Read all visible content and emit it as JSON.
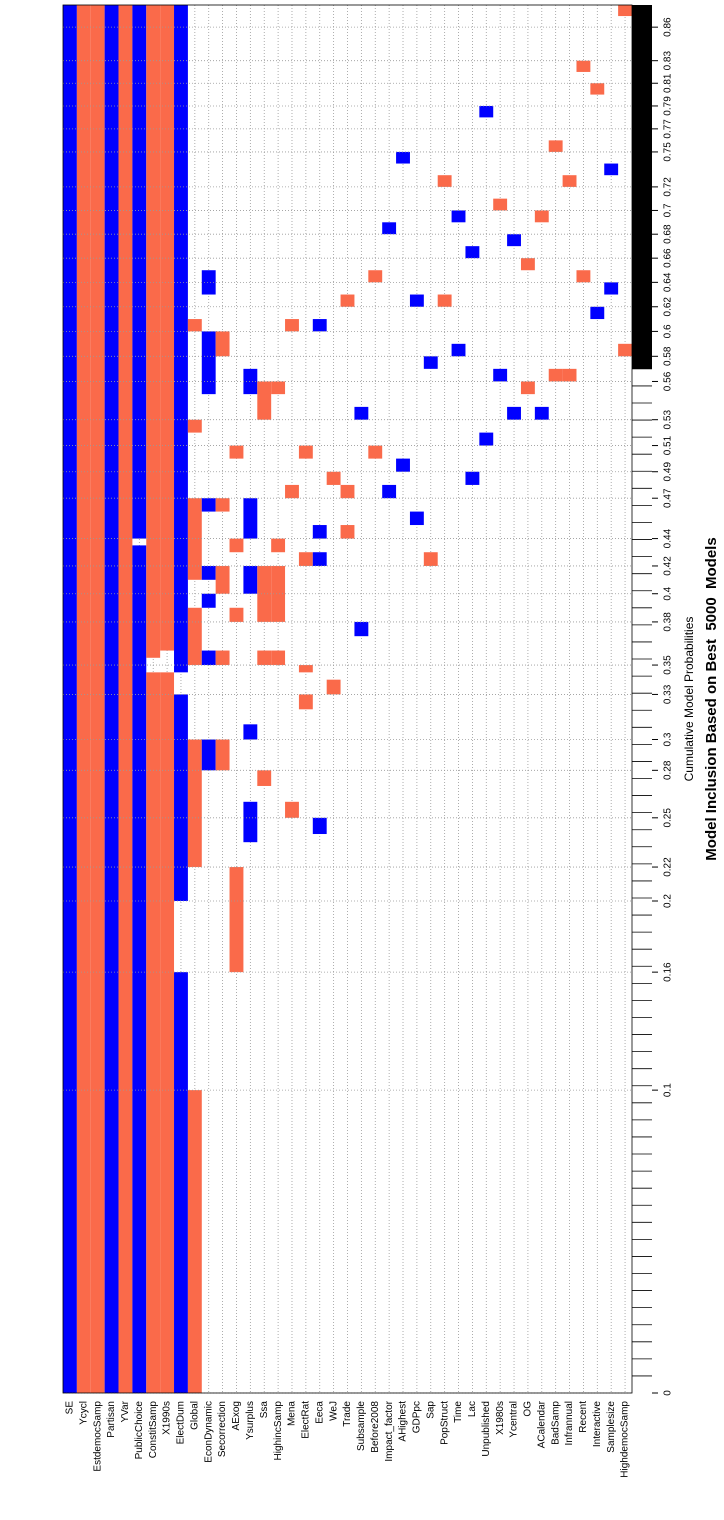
{
  "chart_data": {
    "type": "inclusion",
    "title": "Model Inclusion Based on Best  5000  Models",
    "xlabel": "Cumulative Model Probabilities",
    "xlim": [
      0,
      0.88
    ],
    "xticks": [
      0,
      0.1,
      0.16,
      0.2,
      0.22,
      0.25,
      0.28,
      0.3,
      0.33,
      0.35,
      0.38,
      0.4,
      0.42,
      0.44,
      0.47,
      0.49,
      0.51,
      0.53,
      0.56,
      0.58,
      0.6,
      0.62,
      0.64,
      0.66,
      0.68,
      0.7,
      0.72,
      0.75,
      0.77,
      0.79,
      0.81,
      0.83,
      0.86
    ],
    "grid": true,
    "colors": {
      "positive": "#0000ff",
      "negative": "#fa6a4a"
    },
    "series": [
      {
        "name": "SE",
        "segments": [
          [
            0,
            0.88,
            1
          ]
        ]
      },
      {
        "name": "Ycycl",
        "segments": [
          [
            0,
            0.88,
            -1
          ]
        ]
      },
      {
        "name": "EstdemocSamp",
        "segments": [
          [
            0,
            0.88,
            -1
          ]
        ]
      },
      {
        "name": "Partisan",
        "segments": [
          [
            0,
            0.88,
            1
          ]
        ]
      },
      {
        "name": "YVar",
        "segments": [
          [
            0,
            0.88,
            -1
          ]
        ]
      },
      {
        "name": "PublicChoice",
        "segments": [
          [
            0,
            0.435,
            1
          ],
          [
            0.44,
            0.88,
            1
          ]
        ]
      },
      {
        "name": "ConstitSamp",
        "segments": [
          [
            0,
            0.345,
            -1
          ],
          [
            0.355,
            0.88,
            -1
          ]
        ]
      },
      {
        "name": "X1990s",
        "segments": [
          [
            0,
            0.345,
            -1
          ],
          [
            0.36,
            0.88,
            -1
          ]
        ]
      },
      {
        "name": "ElectDum",
        "segments": [
          [
            0,
            0.16,
            1
          ],
          [
            0.2,
            0.33,
            1
          ],
          [
            0.345,
            0.88,
            1
          ]
        ]
      },
      {
        "name": "Global",
        "segments": [
          [
            0,
            0.1,
            -1
          ],
          [
            0.22,
            0.3,
            -1
          ],
          [
            0.35,
            0.39,
            -1
          ],
          [
            0.41,
            0.47,
            -1
          ],
          [
            0.52,
            0.53,
            -1
          ],
          [
            0.6,
            0.61,
            -1
          ]
        ]
      },
      {
        "name": "EconDynamic",
        "segments": [
          [
            0.28,
            0.3,
            1
          ],
          [
            0.35,
            0.36,
            1
          ],
          [
            0.39,
            0.4,
            1
          ],
          [
            0.41,
            0.42,
            1
          ],
          [
            0.46,
            0.47,
            1
          ],
          [
            0.55,
            0.6,
            1
          ],
          [
            0.63,
            0.65,
            1
          ]
        ]
      },
      {
        "name": "Secorrection",
        "segments": [
          [
            0.28,
            0.3,
            -1
          ],
          [
            0.35,
            0.36,
            -1
          ],
          [
            0.4,
            0.42,
            -1
          ],
          [
            0.46,
            0.47,
            -1
          ],
          [
            0.58,
            0.6,
            -1
          ]
        ]
      },
      {
        "name": "AExog",
        "segments": [
          [
            0.16,
            0.22,
            -1
          ],
          [
            0.38,
            0.39,
            -1
          ],
          [
            0.43,
            0.44,
            -1
          ],
          [
            0.5,
            0.51,
            -1
          ]
        ]
      },
      {
        "name": "Ysurplus",
        "segments": [
          [
            0.235,
            0.26,
            1
          ],
          [
            0.3,
            0.31,
            1
          ],
          [
            0.4,
            0.42,
            1
          ],
          [
            0.44,
            0.47,
            1
          ],
          [
            0.55,
            0.57,
            1
          ]
        ]
      },
      {
        "name": "Ssa",
        "segments": [
          [
            0.27,
            0.28,
            -1
          ],
          [
            0.35,
            0.36,
            -1
          ],
          [
            0.38,
            0.42,
            -1
          ],
          [
            0.53,
            0.56,
            -1
          ]
        ]
      },
      {
        "name": "HighincSamp",
        "segments": [
          [
            0.35,
            0.36,
            -1
          ],
          [
            0.38,
            0.42,
            -1
          ],
          [
            0.43,
            0.44,
            -1
          ],
          [
            0.55,
            0.56,
            -1
          ]
        ]
      },
      {
        "name": "Mena",
        "segments": [
          [
            0.25,
            0.26,
            -1
          ],
          [
            0.47,
            0.48,
            -1
          ],
          [
            0.6,
            0.61,
            -1
          ]
        ]
      },
      {
        "name": "ElectRat",
        "segments": [
          [
            0.32,
            0.33,
            -1
          ],
          [
            0.345,
            0.35,
            -1
          ],
          [
            0.42,
            0.43,
            -1
          ],
          [
            0.5,
            0.51,
            -1
          ]
        ]
      },
      {
        "name": "Eeca",
        "segments": [
          [
            0.24,
            0.25,
            1
          ],
          [
            0.42,
            0.43,
            1
          ],
          [
            0.44,
            0.45,
            1
          ],
          [
            0.6,
            0.61,
            1
          ]
        ]
      },
      {
        "name": "WeJ",
        "segments": [
          [
            0.33,
            0.34,
            -1
          ],
          [
            0.48,
            0.49,
            -1
          ]
        ]
      },
      {
        "name": "Trade",
        "segments": [
          [
            0.44,
            0.45,
            -1
          ],
          [
            0.47,
            0.48,
            -1
          ],
          [
            0.62,
            0.63,
            -1
          ]
        ]
      },
      {
        "name": "Subsample",
        "segments": [
          [
            0.37,
            0.38,
            1
          ],
          [
            0.53,
            0.54,
            1
          ]
        ]
      },
      {
        "name": "Before2008",
        "segments": [
          [
            0.5,
            0.51,
            -1
          ],
          [
            0.64,
            0.65,
            -1
          ]
        ]
      },
      {
        "name": "Impact_factor",
        "segments": [
          [
            0.47,
            0.48,
            1
          ],
          [
            0.68,
            0.69,
            1
          ]
        ]
      },
      {
        "name": "AHighest",
        "segments": [
          [
            0.49,
            0.5,
            1
          ],
          [
            0.74,
            0.75,
            1
          ]
        ]
      },
      {
        "name": "GDPpc",
        "segments": [
          [
            0.45,
            0.46,
            1
          ],
          [
            0.62,
            0.63,
            1
          ]
        ]
      },
      {
        "name": "Sap",
        "segments": [
          [
            0.42,
            0.43,
            -1
          ],
          [
            0.57,
            0.58,
            1
          ]
        ]
      },
      {
        "name": "PopStruct",
        "segments": [
          [
            0.62,
            0.63,
            -1
          ],
          [
            0.72,
            0.73,
            -1
          ]
        ]
      },
      {
        "name": "Time",
        "segments": [
          [
            0.58,
            0.59,
            1
          ],
          [
            0.69,
            0.7,
            1
          ]
        ]
      },
      {
        "name": "Lac",
        "segments": [
          [
            0.48,
            0.49,
            1
          ],
          [
            0.66,
            0.67,
            1
          ]
        ]
      },
      {
        "name": "Unpublished",
        "segments": [
          [
            0.51,
            0.52,
            1
          ],
          [
            0.78,
            0.79,
            1
          ]
        ]
      },
      {
        "name": "X1980s",
        "segments": [
          [
            0.56,
            0.57,
            1
          ],
          [
            0.7,
            0.71,
            -1
          ]
        ]
      },
      {
        "name": "Ycentral",
        "segments": [
          [
            0.53,
            0.54,
            1
          ],
          [
            0.67,
            0.68,
            1
          ]
        ]
      },
      {
        "name": "OG",
        "segments": [
          [
            0.55,
            0.56,
            -1
          ],
          [
            0.65,
            0.66,
            -1
          ]
        ]
      },
      {
        "name": "ACalendar",
        "segments": [
          [
            0.53,
            0.54,
            1
          ],
          [
            0.69,
            0.7,
            -1
          ]
        ]
      },
      {
        "name": "BadSamp",
        "segments": [
          [
            0.56,
            0.57,
            -1
          ],
          [
            0.75,
            0.76,
            -1
          ]
        ]
      },
      {
        "name": "Infrannual",
        "segments": [
          [
            0.56,
            0.57,
            -1
          ],
          [
            0.72,
            0.73,
            -1
          ]
        ]
      },
      {
        "name": "Recent",
        "segments": [
          [
            0.64,
            0.65,
            -1
          ],
          [
            0.82,
            0.83,
            -1
          ]
        ]
      },
      {
        "name": "Interactive",
        "segments": [
          [
            0.61,
            0.62,
            1
          ],
          [
            0.8,
            0.81,
            -1
          ]
        ]
      },
      {
        "name": "Samplesize",
        "segments": [
          [
            0.63,
            0.64,
            1
          ],
          [
            0.73,
            0.74,
            1
          ]
        ]
      },
      {
        "name": "HighdemocSamp",
        "segments": [
          [
            0.58,
            0.59,
            -1
          ],
          [
            0.87,
            0.88,
            -1
          ]
        ]
      }
    ]
  }
}
